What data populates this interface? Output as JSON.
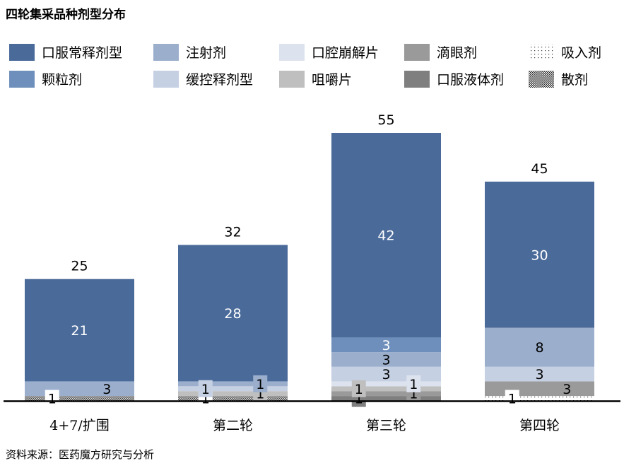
{
  "chart_data": {
    "type": "bar",
    "stacked": true,
    "title": "四轮集采品种剂型分布",
    "source": "资料来源：医药魔方研究与分析",
    "categories": [
      "4+7/扩围",
      "第二轮",
      "第三轮",
      "第四轮"
    ],
    "totals": [
      25,
      32,
      55,
      45
    ],
    "legend_position": "top",
    "series": [
      {
        "name": "口服常释剂型",
        "color": "#4a6a9a",
        "values": [
          21,
          28,
          42,
          30
        ]
      },
      {
        "name": "注射剂",
        "color": "#9bafcd",
        "values": [
          3,
          1,
          3,
          8
        ]
      },
      {
        "name": "口腔崩解片",
        "color": "#dde3ee",
        "values": [
          0,
          0,
          1,
          0
        ]
      },
      {
        "name": "滴眼剂",
        "color": "#9a9a9a",
        "values": [
          0,
          0,
          1,
          3
        ]
      },
      {
        "name": "吸入剂",
        "color": "dots",
        "values": [
          0,
          0,
          0,
          1
        ]
      },
      {
        "name": "颗粒剂",
        "color": "#6e8fbb",
        "values": [
          0,
          0,
          3,
          0
        ]
      },
      {
        "name": "缓控释剂型",
        "color": "#c5d0e3",
        "values": [
          0,
          1,
          3,
          3
        ]
      },
      {
        "name": "咀嚼片",
        "color": "#bfbfbf",
        "values": [
          0,
          1,
          1,
          0
        ]
      },
      {
        "name": "口服液体剂",
        "color": "#7f7f7f",
        "values": [
          0,
          0,
          1,
          0
        ]
      },
      {
        "name": "散剂",
        "color": "checker",
        "values": [
          1,
          1,
          0,
          0
        ]
      }
    ],
    "ylim": [
      0,
      55
    ]
  }
}
